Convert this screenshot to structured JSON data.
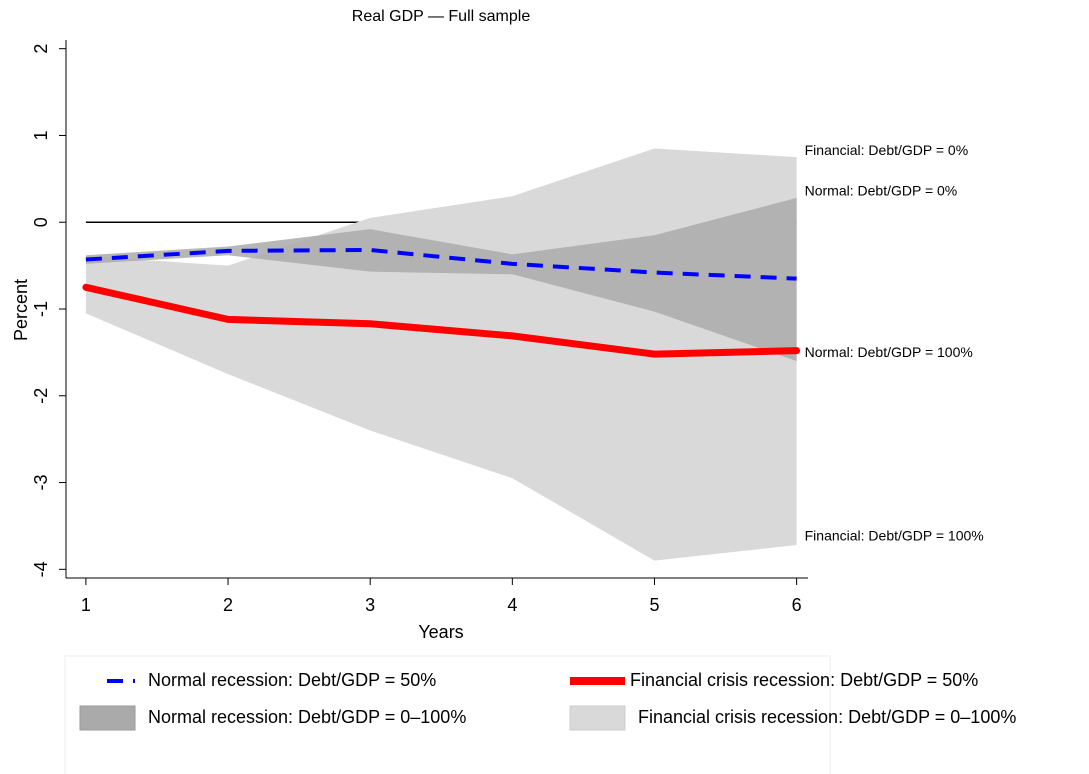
{
  "chart_data": {
    "type": "line",
    "title": "Real GDP — Full sample",
    "x_label": "Years",
    "y_label": "Percent",
    "x": [
      1,
      2,
      3,
      4,
      5,
      6
    ],
    "xlim": [
      0.86,
      6.08
    ],
    "xticks": [
      1,
      2,
      3,
      4,
      5,
      6
    ],
    "ylim": [
      -4.1,
      2.1
    ],
    "yticks": [
      -4,
      -3,
      -2,
      -1,
      0,
      1,
      2
    ],
    "reference_line": 0,
    "bands": [
      {
        "name": "Financial crisis recession: Debt/GDP = 0–100%",
        "color": "#d9d9d9",
        "upper": [
          -0.39,
          -0.5,
          0.05,
          0.3,
          0.85,
          0.75
        ],
        "lower": [
          -1.05,
          -1.75,
          -2.4,
          -2.95,
          -3.9,
          -3.72
        ],
        "upper_label": "Financial: Debt/GDP = 0%",
        "lower_label": "Financial: Debt/GDP = 100%"
      },
      {
        "name": "Normal recession: Debt/GDP = 0–100%",
        "color": "#aaaaaa",
        "upper": [
          -0.38,
          -0.28,
          -0.08,
          -0.37,
          -0.15,
          0.28
        ],
        "lower": [
          -0.48,
          -0.38,
          -0.57,
          -0.6,
          -1.03,
          -1.6
        ],
        "upper_label": "Normal: Debt/GDP = 0%",
        "lower_label": "Normal: Debt/GDP = 100%"
      }
    ],
    "series": [
      {
        "name": "Normal recession: Debt/GDP = 50%",
        "color": "#0000ff",
        "dashed": true,
        "values": [
          -0.43,
          -0.33,
          -0.32,
          -0.48,
          -0.58,
          -0.65
        ]
      },
      {
        "name": "Financial crisis recession: Debt/GDP = 50%",
        "color": "#ff0000",
        "dashed": false,
        "values": [
          -0.75,
          -1.12,
          -1.17,
          -1.31,
          -1.52,
          -1.48
        ]
      }
    ]
  }
}
